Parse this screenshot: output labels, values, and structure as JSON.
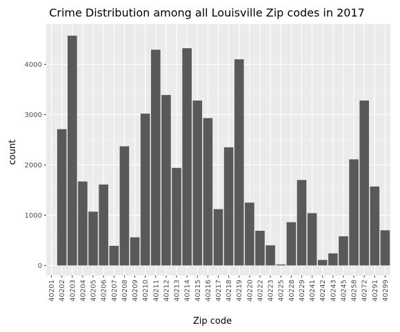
{
  "chart_data": {
    "type": "bar",
    "title": "Crime Distribution among all Louisville Zip codes in 2017",
    "xlabel": "Zip code",
    "ylabel": "count",
    "categories": [
      "40201",
      "40202",
      "40203",
      "40204",
      "40205",
      "40206",
      "40207",
      "40208",
      "40209",
      "40210",
      "40211",
      "40212",
      "40213",
      "40214",
      "40215",
      "40216",
      "40217",
      "40218",
      "40219",
      "40220",
      "40222",
      "40223",
      "40225",
      "40228",
      "40229",
      "40241",
      "40242",
      "40243",
      "40245",
      "40258",
      "40272",
      "40291",
      "40299"
    ],
    "values": [
      0,
      2710,
      4570,
      1670,
      1070,
      1610,
      390,
      2370,
      560,
      3020,
      4290,
      3390,
      1940,
      4320,
      3280,
      2930,
      1120,
      2350,
      4100,
      1250,
      690,
      400,
      20,
      860,
      1700,
      1040,
      110,
      240,
      580,
      2110,
      3280,
      1570,
      700
    ],
    "ylim": [
      -200,
      4800
    ],
    "yticks": [
      0,
      1000,
      2000,
      3000,
      4000
    ],
    "ytick_labels": [
      "0",
      "1000",
      "2000",
      "3000",
      "4000"
    ],
    "grid": true,
    "colors": {
      "bar": "#595959",
      "panel": "#ebebeb",
      "grid_major": "#ffffff",
      "tick": "#333333"
    }
  }
}
